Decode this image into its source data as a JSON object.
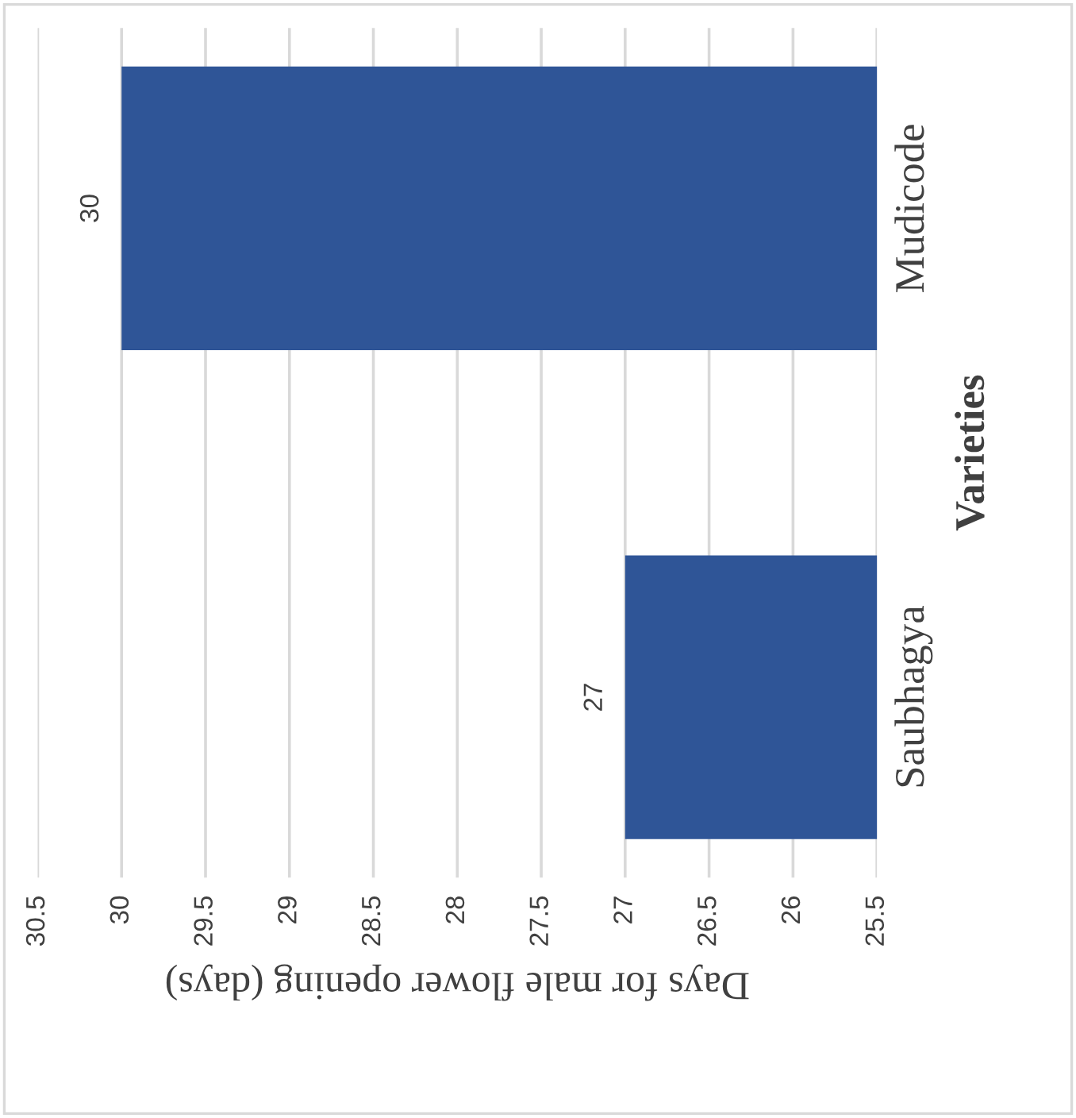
{
  "chart_data": {
    "type": "bar",
    "orientation": "horizontal",
    "categories": [
      "Mudicode",
      "Saubhagya"
    ],
    "values": [
      30,
      27
    ],
    "color": "#2f5597",
    "xlim": [
      30.5,
      25.5
    ],
    "xticks": [
      30.5,
      30,
      29.5,
      29,
      28.5,
      28,
      27.5,
      27,
      26.5,
      26,
      25.5
    ],
    "xlabel": "Days for male flower opening (days)",
    "ylabel": "Varieties",
    "data_labels": true,
    "grid": "x"
  }
}
